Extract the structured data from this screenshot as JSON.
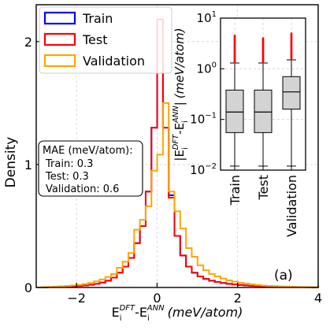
{
  "chart_data": [
    {
      "type": "histogram",
      "title": "",
      "xlabel": "E_i^DFT-E_i^ANN (meV/atom)",
      "xlabel_parts": {
        "base1": "E",
        "sub1": "i",
        "sup1": "DFT",
        "dash": "-E",
        "sub2": "i",
        "sup2": "ANN",
        "unit": "(meV/atom)"
      },
      "ylabel": "Density",
      "xlim": [
        -3,
        4
      ],
      "ylim": [
        0,
        2.3
      ],
      "xticks": [
        -2,
        0,
        2,
        4
      ],
      "yticks": [
        0,
        1,
        2
      ],
      "grid": true,
      "legend_position": "top-left",
      "annotation": "(a)",
      "bin_width": 0.143,
      "bin_edges_start": -3.0,
      "series": [
        {
          "name": "Train",
          "color": "#0000ff",
          "values": [
            0,
            0.002,
            0.003,
            0.005,
            0.006,
            0.008,
            0.01,
            0.013,
            0.017,
            0.022,
            0.03,
            0.04,
            0.055,
            0.08,
            0.12,
            0.17,
            0.24,
            0.36,
            0.5,
            0.78,
            1.3,
            2.18,
            1.3,
            0.75,
            0.42,
            0.26,
            0.17,
            0.12,
            0.09,
            0.07,
            0.055,
            0.045,
            0.037,
            0.03,
            0.025,
            0.02,
            0.017,
            0.014,
            0.012,
            0.01,
            0.008,
            0.007,
            0.006,
            0.005,
            0.004,
            0.0035,
            0.003,
            0.0025,
            0.002
          ]
        },
        {
          "name": "Test",
          "color": "#ff0000",
          "values": [
            0,
            0.002,
            0.003,
            0.005,
            0.006,
            0.008,
            0.01,
            0.013,
            0.017,
            0.022,
            0.03,
            0.04,
            0.055,
            0.08,
            0.12,
            0.17,
            0.24,
            0.36,
            0.5,
            0.78,
            1.3,
            2.18,
            1.3,
            0.73,
            0.42,
            0.26,
            0.17,
            0.12,
            0.09,
            0.07,
            0.055,
            0.045,
            0.037,
            0.03,
            0.025,
            0.02,
            0.017,
            0.014,
            0.012,
            0.01,
            0.008,
            0.007,
            0.006,
            0.005,
            0.004,
            0.0035,
            0.003,
            0.0025,
            0.002
          ]
        },
        {
          "name": "Validation",
          "color": "#ffa500",
          "values": [
            0,
            0.003,
            0.005,
            0.007,
            0.01,
            0.013,
            0.017,
            0.022,
            0.028,
            0.037,
            0.05,
            0.065,
            0.085,
            0.11,
            0.16,
            0.21,
            0.28,
            0.47,
            0.55,
            0.66,
            0.95,
            1.08,
            1.5,
            0.78,
            0.62,
            0.48,
            0.32,
            0.25,
            0.18,
            0.14,
            0.11,
            0.09,
            0.072,
            0.058,
            0.047,
            0.038,
            0.031,
            0.025,
            0.02,
            0.016,
            0.013,
            0.011,
            0.009,
            0.007,
            0.006,
            0.005,
            0.004,
            0.0035,
            0.003
          ]
        }
      ],
      "textbox": {
        "lines": [
          "MAE (meV/atom):",
          "Train: 0.3",
          "Test: 0.3",
          "Validation: 0.6"
        ]
      }
    },
    {
      "type": "boxplot",
      "title": "",
      "ylabel": "|E_i^DFT-E_i^ANN| (meV/atom)",
      "ylabel_parts": {
        "base1": "|E",
        "sub1": "i",
        "sup1": "DFT",
        "dash": "-E",
        "sub2": "i",
        "sup2": "ANN",
        "tail": "|",
        "unit": "(meV/atom)"
      },
      "yscale": "log",
      "ylim": [
        0.01,
        10
      ],
      "yticks": [
        0.01,
        0.1,
        1,
        10
      ],
      "ytick_labels": {
        "base": "10",
        "exps": [
          "-2",
          "-1",
          "0",
          "1"
        ]
      },
      "grid": true,
      "categories": [
        "Train",
        "Test",
        "Validation"
      ],
      "box_color": "#d3d3d3",
      "median_color": "#000000",
      "outlier_color": "#ff0000",
      "boxes": [
        {
          "whisker_low": 0.012,
          "q1": 0.055,
          "median": 0.14,
          "q3": 0.38,
          "whisker_high": 1.3,
          "outlier_max": 4.5
        },
        {
          "whisker_low": 0.012,
          "q1": 0.055,
          "median": 0.14,
          "q3": 0.38,
          "whisker_high": 1.3,
          "outlier_max": 4.0
        },
        {
          "whisker_low": 0.012,
          "q1": 0.16,
          "median": 0.35,
          "q3": 0.7,
          "whisker_high": 1.5,
          "outlier_max": 5.0
        }
      ]
    }
  ]
}
